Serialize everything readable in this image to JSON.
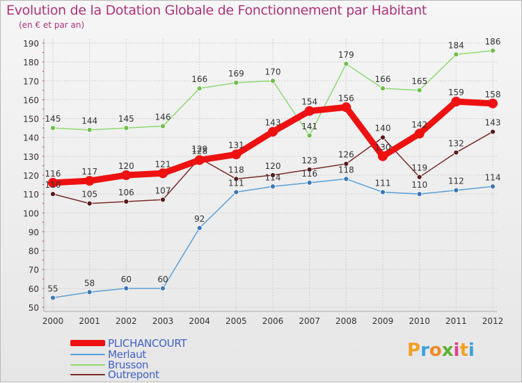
{
  "title": "Evolution de la Dotation Globale de Fonctionnement par Habitant",
  "subtitle": "(en € et par an)",
  "logo": {
    "text": "Proxiti",
    "letters": [
      {
        "ch": "P",
        "color": "#f2a024"
      },
      {
        "ch": "r",
        "color": "#3aa1dc"
      },
      {
        "ch": "o",
        "color": "#f08a26"
      },
      {
        "ch": "x",
        "color": "#5cb030"
      },
      {
        "ch": "i",
        "color": "#e04090"
      },
      {
        "ch": "t",
        "color": "#f2a024"
      },
      {
        "ch": "i",
        "color": "#3aa1dc"
      }
    ]
  },
  "chart_data": {
    "type": "line",
    "title": "Evolution de la Dotation Globale de Fonctionnement par Habitant",
    "subtitle": "(en € et par an)",
    "xlabel": "",
    "ylabel": "",
    "grid": true,
    "legend_position": "bottom-left",
    "ylim": [
      50,
      190
    ],
    "yticks": [
      50,
      60,
      70,
      80,
      90,
      100,
      110,
      120,
      130,
      140,
      150,
      160,
      170,
      180,
      190
    ],
    "categories": [
      "2000",
      "2001",
      "2002",
      "2003",
      "2004",
      "2005",
      "2006",
      "2007",
      "2008",
      "2009",
      "2010",
      "2011",
      "2012"
    ],
    "series": [
      {
        "name": "Merlaut",
        "color": "#5a9fd8",
        "marker": "#3a78b8",
        "width": 1.5,
        "markerSize": 3.5,
        "values": [
          55,
          58,
          60,
          60,
          92,
          111,
          114,
          116,
          118,
          111,
          110,
          112,
          114
        ]
      },
      {
        "name": "Brusson",
        "color": "#90d870",
        "marker": "#6ec04a",
        "width": 1.5,
        "markerSize": 3.5,
        "values": [
          145,
          144,
          145,
          146,
          166,
          169,
          170,
          141,
          179,
          166,
          165,
          184,
          186
        ]
      },
      {
        "name": "Outrepont",
        "color": "#7a2a2a",
        "marker": "#5a1818",
        "width": 1.5,
        "markerSize": 3.5,
        "values": [
          110,
          105,
          106,
          107,
          129,
          118,
          120,
          123,
          126,
          140,
          119,
          132,
          143
        ]
      },
      {
        "name": "PLICHANCOURT",
        "color": "#ee1111",
        "marker": "#ee1111",
        "width": 9,
        "markerSize": 7,
        "values": [
          116,
          117,
          120,
          121,
          128,
          131,
          143,
          154,
          156,
          130,
          142,
          159,
          158
        ]
      }
    ],
    "legend": [
      {
        "name": "PLICHANCOURT",
        "color": "#ee1111",
        "thickness": 9
      },
      {
        "name": "Merlaut",
        "color": "#5a9fd8",
        "thickness": 2
      },
      {
        "name": "Brusson",
        "color": "#90d870",
        "thickness": 2
      },
      {
        "name": "Outrepont",
        "color": "#7a2a2a",
        "thickness": 2
      }
    ]
  }
}
